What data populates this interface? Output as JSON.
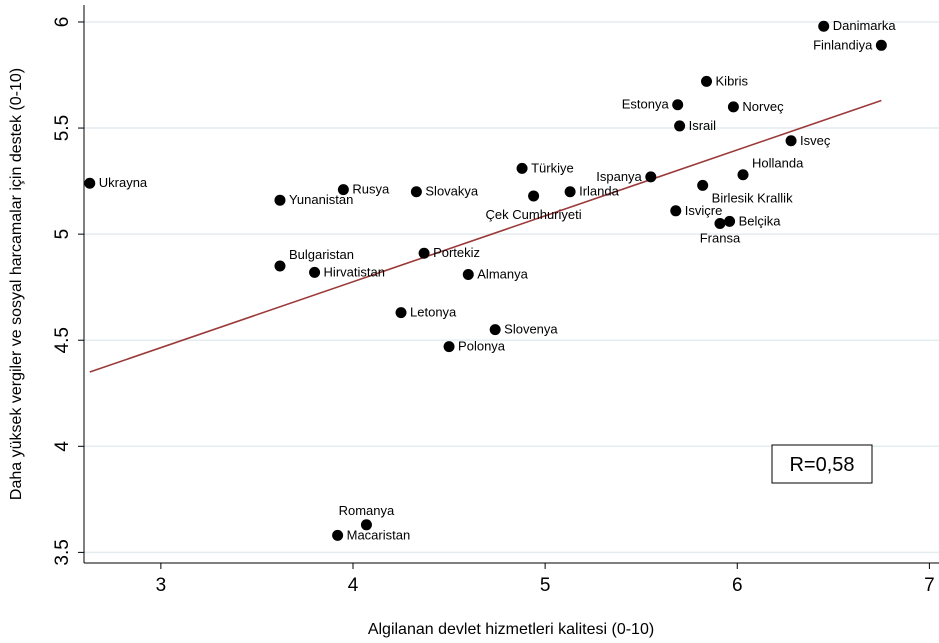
{
  "chart_data": {
    "type": "scatter",
    "xlabel": "Algilanan devlet hizmetleri  kalitesi (0-10)",
    "ylabel": "Daha yüksek vergiler ve sosyal harcamalar için destek (0-10)",
    "xlim": [
      2.6,
      7.05
    ],
    "ylim": [
      3.45,
      6.08
    ],
    "xticks": [
      3,
      4,
      5,
      6,
      7
    ],
    "yticks": [
      3.5,
      4,
      4.5,
      5,
      5.5,
      6
    ],
    "ytick_labels": [
      "3.5",
      "4",
      "4.5",
      "5",
      "5.5",
      "6"
    ],
    "grid": "horizontal",
    "points": [
      {
        "label": "Danimarka",
        "x": 6.45,
        "y": 5.98,
        "pos": "right"
      },
      {
        "label": "Finlandiya",
        "x": 6.75,
        "y": 5.89,
        "pos": "left"
      },
      {
        "label": "Kibris",
        "x": 5.84,
        "y": 5.72,
        "pos": "right"
      },
      {
        "label": "Estonya",
        "x": 5.69,
        "y": 5.61,
        "pos": "left"
      },
      {
        "label": "Norveç",
        "x": 5.98,
        "y": 5.6,
        "pos": "right"
      },
      {
        "label": "Israil",
        "x": 5.7,
        "y": 5.51,
        "pos": "right"
      },
      {
        "label": "Isveç",
        "x": 6.28,
        "y": 5.44,
        "pos": "right"
      },
      {
        "label": "Türkiye",
        "x": 4.88,
        "y": 5.31,
        "pos": "right"
      },
      {
        "label": "Ispanya",
        "x": 5.55,
        "y": 5.27,
        "pos": "left"
      },
      {
        "label": "Hollanda",
        "x": 6.03,
        "y": 5.28,
        "pos": "above-right"
      },
      {
        "label": "Ukrayna",
        "x": 2.63,
        "y": 5.24,
        "pos": "right"
      },
      {
        "label": "Birlesik Krallik",
        "x": 5.82,
        "y": 5.23,
        "pos": "below-right"
      },
      {
        "label": "Rusya",
        "x": 3.95,
        "y": 5.21,
        "pos": "right"
      },
      {
        "label": "Slovakya",
        "x": 4.33,
        "y": 5.2,
        "pos": "right"
      },
      {
        "label": "Irlanda",
        "x": 5.13,
        "y": 5.2,
        "pos": "right"
      },
      {
        "label": "Çek Cumhuriyeti",
        "x": 4.94,
        "y": 5.18,
        "pos": "below-center"
      },
      {
        "label": "Yunanistan",
        "x": 3.62,
        "y": 5.16,
        "pos": "right"
      },
      {
        "label": "Isviçre",
        "x": 5.68,
        "y": 5.11,
        "pos": "right"
      },
      {
        "label": "Belçika",
        "x": 5.96,
        "y": 5.06,
        "pos": "right"
      },
      {
        "label": "Fransa",
        "x": 5.91,
        "y": 5.05,
        "pos": "below"
      },
      {
        "label": "Portekiz",
        "x": 4.37,
        "y": 4.91,
        "pos": "right"
      },
      {
        "label": "Bulgaristan",
        "x": 3.62,
        "y": 4.85,
        "pos": "above-right"
      },
      {
        "label": "Hirvatistan",
        "x": 3.8,
        "y": 4.82,
        "pos": "right"
      },
      {
        "label": "Almanya",
        "x": 4.6,
        "y": 4.81,
        "pos": "right"
      },
      {
        "label": "Letonya",
        "x": 4.25,
        "y": 4.63,
        "pos": "right"
      },
      {
        "label": "Slovenya",
        "x": 4.74,
        "y": 4.55,
        "pos": "right"
      },
      {
        "label": "Polonya",
        "x": 4.5,
        "y": 4.47,
        "pos": "right"
      },
      {
        "label": "Romanya",
        "x": 4.07,
        "y": 3.63,
        "pos": "above"
      },
      {
        "label": "Macaristan",
        "x": 3.92,
        "y": 3.58,
        "pos": "right"
      }
    ],
    "fit_line": {
      "x": [
        2.63,
        6.75
      ],
      "y": [
        4.35,
        5.63
      ],
      "color": "#9b3a3a"
    },
    "annotation": "R=0,58",
    "annotation_location": "lower-right"
  },
  "colors": {
    "background": "#ffffff",
    "points": "#000000",
    "grid": "#e3ecef",
    "fit_line": "#9b3a3a"
  }
}
